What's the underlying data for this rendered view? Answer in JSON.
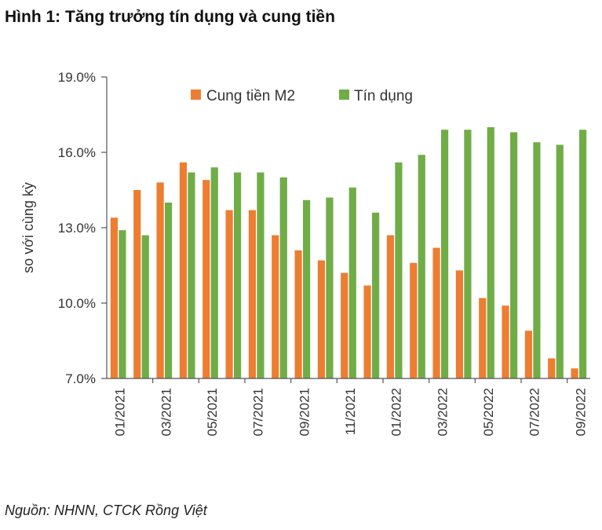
{
  "title": "Hình 1: Tăng trưởng tín dụng và cung tiền",
  "source": "Nguồn: NHNN, CTCK Rồng Việt",
  "colors": {
    "m2": "#ed7d31",
    "credit": "#70ad47",
    "axis": "#555555"
  },
  "chart_data": {
    "type": "bar",
    "title": "",
    "xlabel": "",
    "ylabel": "so với cùng kỳ",
    "ylim": [
      7.0,
      19.0
    ],
    "yticks": [
      "7.0%",
      "10.0%",
      "13.0%",
      "16.0%",
      "19.0%"
    ],
    "ytick_values": [
      7.0,
      10.0,
      13.0,
      16.0,
      19.0
    ],
    "categories": [
      "01/2021",
      "02/2021",
      "03/2021",
      "04/2021",
      "05/2021",
      "06/2021",
      "07/2021",
      "08/2021",
      "09/2021",
      "10/2021",
      "11/2021",
      "12/2021",
      "01/2022",
      "02/2022",
      "03/2022",
      "04/2022",
      "05/2022",
      "06/2022",
      "07/2022",
      "08/2022",
      "09/2022"
    ],
    "xtick_labels": [
      "01/2021",
      "03/2021",
      "05/2021",
      "07/2021",
      "09/2021",
      "11/2021",
      "01/2022",
      "03/2022",
      "05/2022",
      "07/2022",
      "09/2022"
    ],
    "legend": [
      "Cung tiền M2",
      "Tín dụng"
    ],
    "series": [
      {
        "name": "Cung tiền M2",
        "values": [
          13.4,
          14.5,
          14.8,
          15.6,
          14.9,
          13.7,
          13.7,
          12.7,
          12.1,
          11.7,
          11.2,
          10.7,
          12.7,
          11.6,
          12.2,
          11.3,
          10.2,
          9.9,
          8.9,
          7.8,
          7.4
        ]
      },
      {
        "name": "Tín dụng",
        "values": [
          12.9,
          12.7,
          14.0,
          15.2,
          15.4,
          15.2,
          15.2,
          15.0,
          14.1,
          14.2,
          14.6,
          13.6,
          15.6,
          15.9,
          16.9,
          16.9,
          17.0,
          16.8,
          16.4,
          16.3,
          16.9
        ]
      }
    ]
  }
}
